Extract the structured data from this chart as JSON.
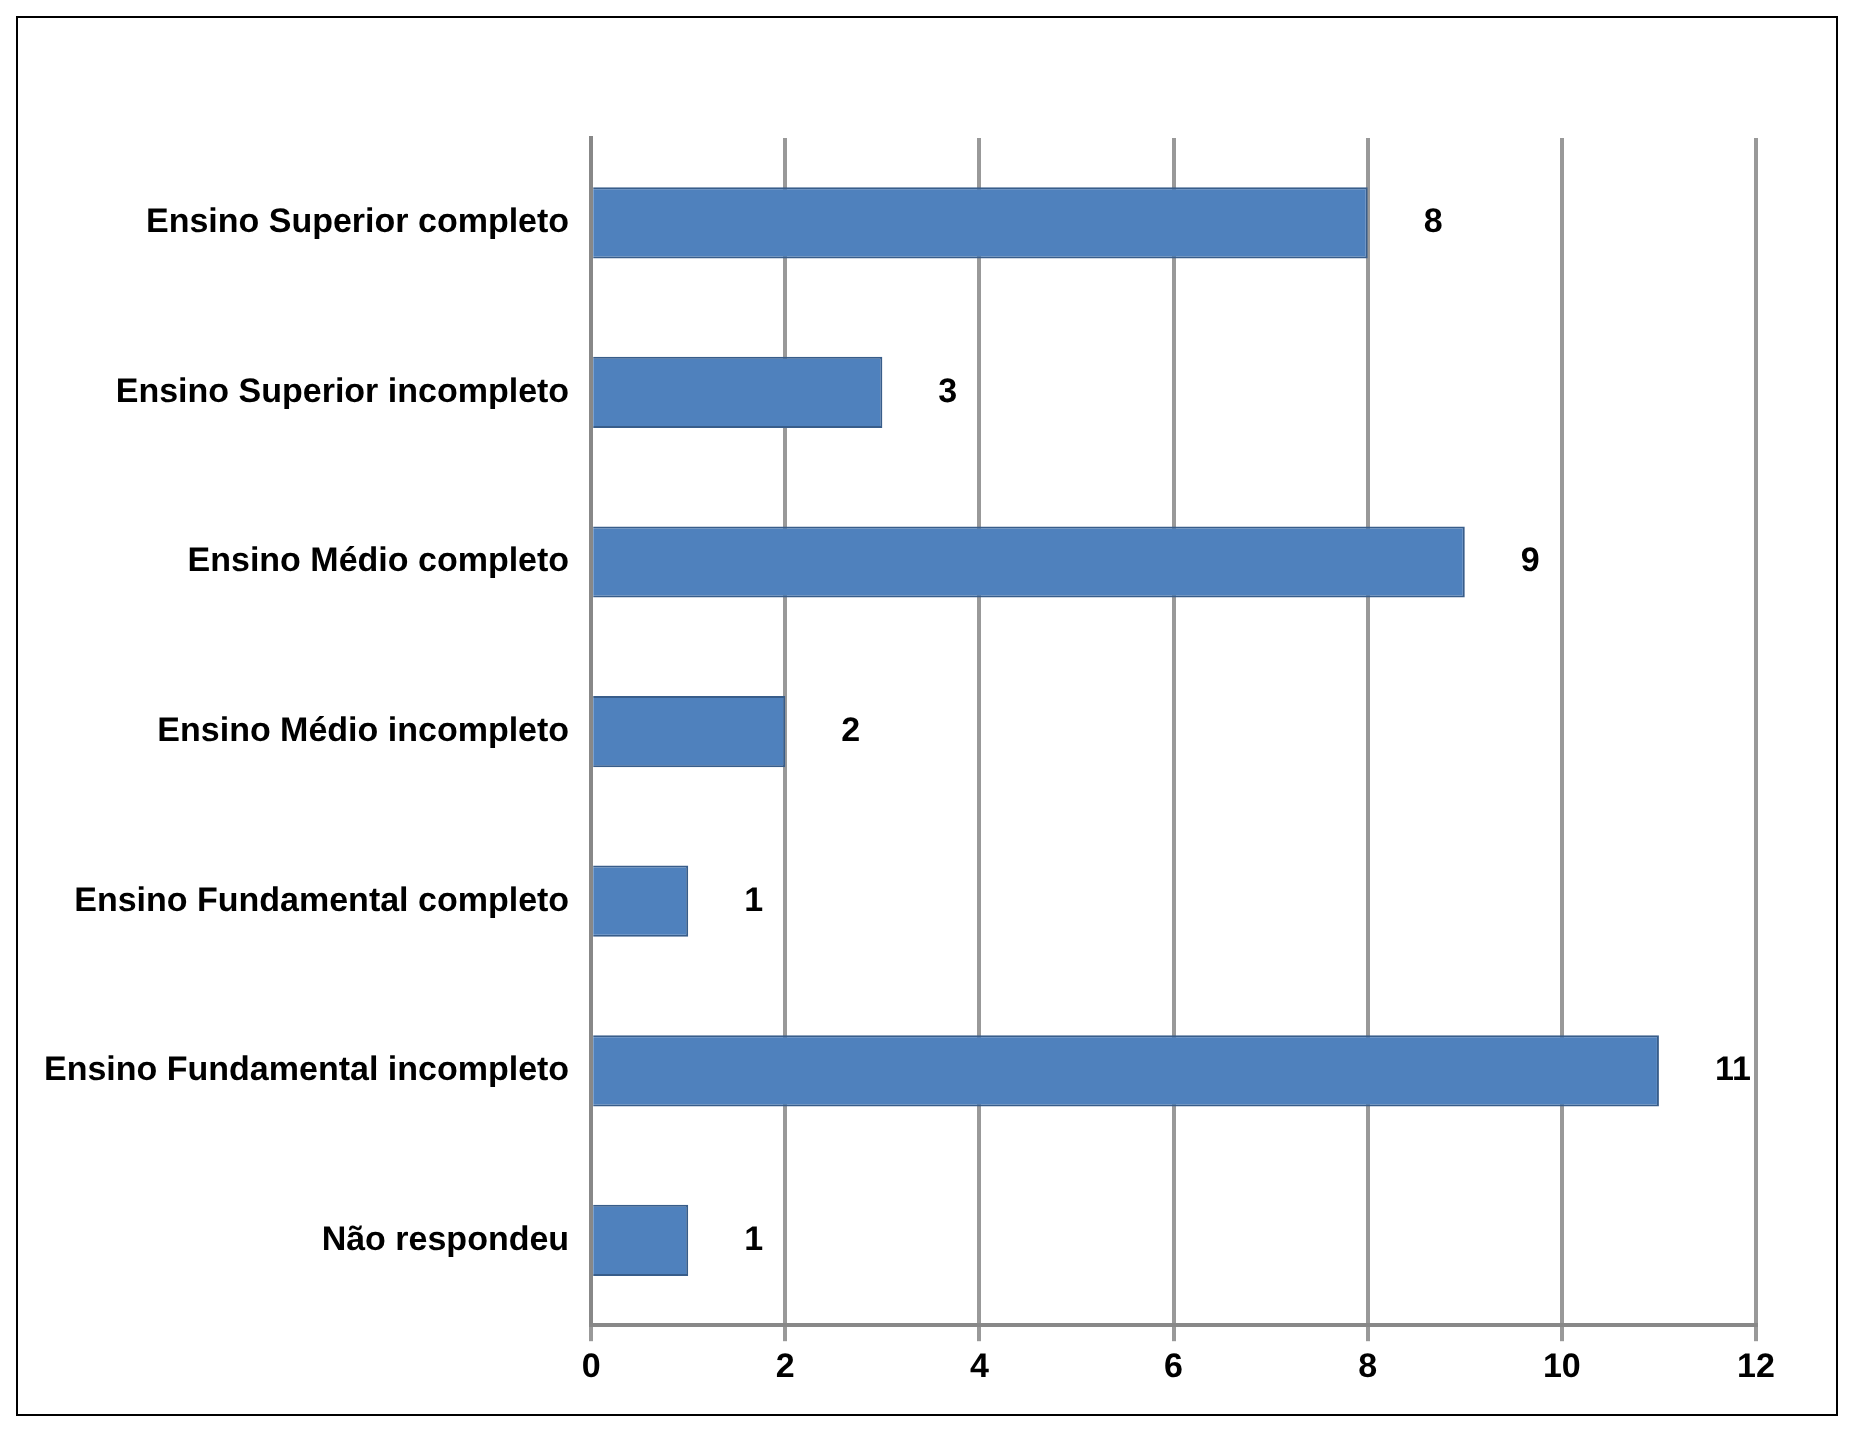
{
  "chart_data": {
    "type": "bar",
    "orientation": "horizontal",
    "categories": [
      "Ensino Superior completo",
      "Ensino Superior incompleto",
      "Ensino Médio completo",
      "Ensino Médio incompleto",
      "Ensino Fundamental completo",
      "Ensino Fundamental incompleto",
      "Não respondeu"
    ],
    "values": [
      8,
      3,
      9,
      2,
      1,
      11,
      1
    ],
    "color": "#4f81bd",
    "xlim": [
      0,
      12
    ],
    "xticks": [
      0,
      2,
      4,
      6,
      8,
      10,
      12
    ],
    "grid": "x",
    "data_labels": true,
    "legend": false
  }
}
